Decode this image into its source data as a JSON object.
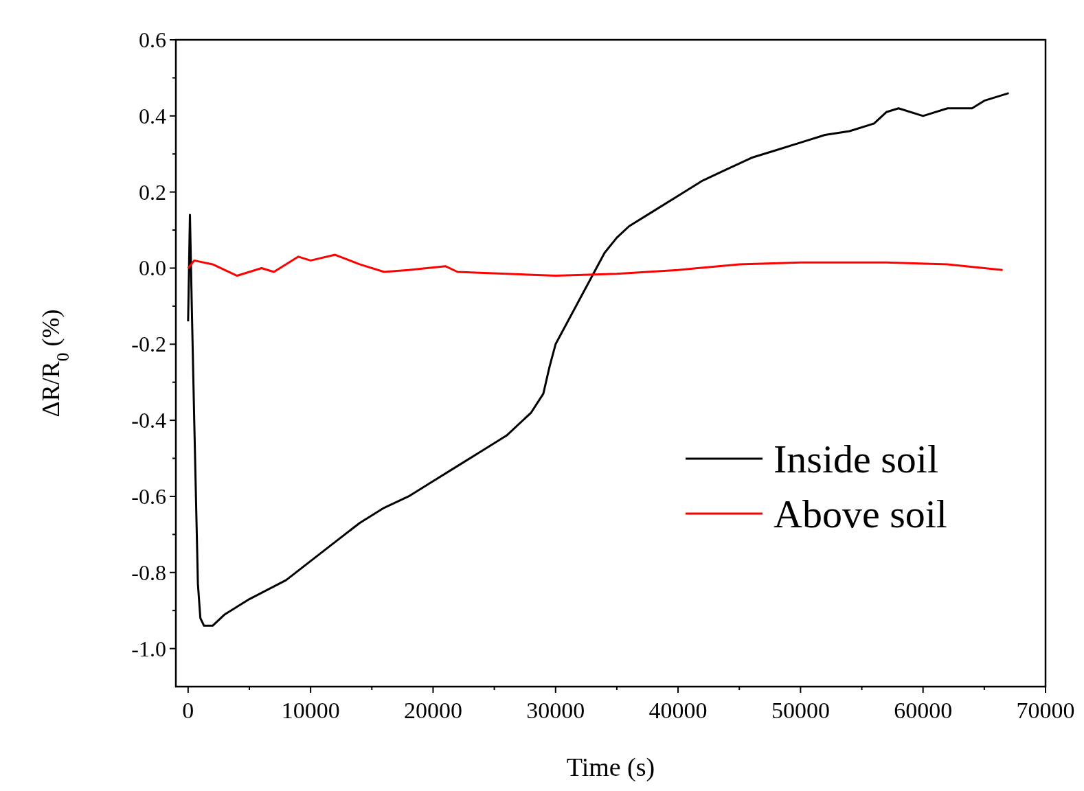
{
  "chart_data": {
    "type": "line",
    "xlabel": "Time (s)",
    "ylabel": "ΔR/R$_{0}$ (%)",
    "xlim": [
      -1000,
      70000
    ],
    "ylim": [
      -1.1,
      0.6
    ],
    "xticks": [
      0,
      {
        "value": 5000,
        "label": null
      },
      10000,
      {
        "value": 15000,
        "label": null
      },
      20000,
      {
        "value": 25000,
        "label": null
      },
      30000,
      {
        "value": 35000,
        "label": null
      },
      40000,
      {
        "value": 45000,
        "label": null
      },
      50000,
      {
        "value": 55000,
        "label": null
      },
      60000,
      {
        "value": 65000,
        "label": null
      },
      70000
    ],
    "yticks": [
      {
        "value": -1.0,
        "label": "-1.0"
      },
      {
        "value": -0.9,
        "label": null
      },
      {
        "value": -0.8,
        "label": "-0.8"
      },
      {
        "value": -0.7,
        "label": null
      },
      {
        "value": -0.6,
        "label": "-0.6"
      },
      {
        "value": -0.5,
        "label": null
      },
      {
        "value": -0.4,
        "label": "-0.4"
      },
      {
        "value": -0.3,
        "label": null
      },
      {
        "value": -0.2,
        "label": "-0.2"
      },
      {
        "value": -0.1,
        "label": null
      },
      {
        "value": 0,
        "label": "0.0"
      },
      {
        "value": 0.1,
        "label": null
      },
      {
        "value": 0.2,
        "label": "0.2"
      },
      {
        "value": 0.3,
        "label": null
      },
      {
        "value": 0.4,
        "label": "0.4"
      },
      {
        "value": 0.5,
        "label": null
      },
      {
        "value": 0.6,
        "label": "0.6"
      }
    ],
    "legend": "right",
    "grid": false,
    "marker": "none",
    "line_style": "solid",
    "series": [
      {
        "name": "Inside soil",
        "color": "#000000",
        "x": [
          0,
          150,
          300,
          500,
          800,
          1000,
          1300,
          2000,
          3000,
          5000,
          8000,
          10000,
          12000,
          14000,
          16000,
          18000,
          20000,
          22000,
          24000,
          26000,
          28000,
          29000,
          29500,
          30000,
          31000,
          32000,
          33000,
          34000,
          35000,
          36000,
          38000,
          40000,
          42000,
          44000,
          46000,
          48000,
          50000,
          52000,
          54000,
          56000,
          57000,
          58000,
          60000,
          62000,
          64000,
          65000,
          67000
        ],
        "values": [
          -0.14,
          0.14,
          -0.1,
          -0.4,
          -0.83,
          -0.92,
          -0.94,
          -0.94,
          -0.91,
          -0.87,
          -0.82,
          -0.77,
          -0.72,
          -0.67,
          -0.63,
          -0.6,
          -0.56,
          -0.52,
          -0.48,
          -0.44,
          -0.38,
          -0.33,
          -0.26,
          -0.2,
          -0.14,
          -0.08,
          -0.02,
          0.04,
          0.08,
          0.11,
          0.15,
          0.19,
          0.23,
          0.26,
          0.29,
          0.31,
          0.33,
          0.35,
          0.36,
          0.38,
          0.41,
          0.42,
          0.4,
          0.42,
          0.42,
          0.44,
          0.46
        ]
      },
      {
        "name": "Above soil",
        "color": "#ff0000",
        "x": [
          0,
          500,
          2000,
          4000,
          6000,
          7000,
          9000,
          10000,
          12000,
          14000,
          16000,
          18000,
          21000,
          22000,
          26000,
          30000,
          35000,
          40000,
          45000,
          50000,
          57000,
          62000,
          66500
        ],
        "values": [
          0,
          0.02,
          0.01,
          -0.02,
          0,
          -0.01,
          0.03,
          0.02,
          0.035,
          0.01,
          -0.01,
          -0.005,
          0.005,
          -0.01,
          -0.015,
          -0.02,
          -0.015,
          -0.005,
          0.01,
          0.015,
          0.015,
          0.01,
          -0.005
        ]
      }
    ]
  }
}
